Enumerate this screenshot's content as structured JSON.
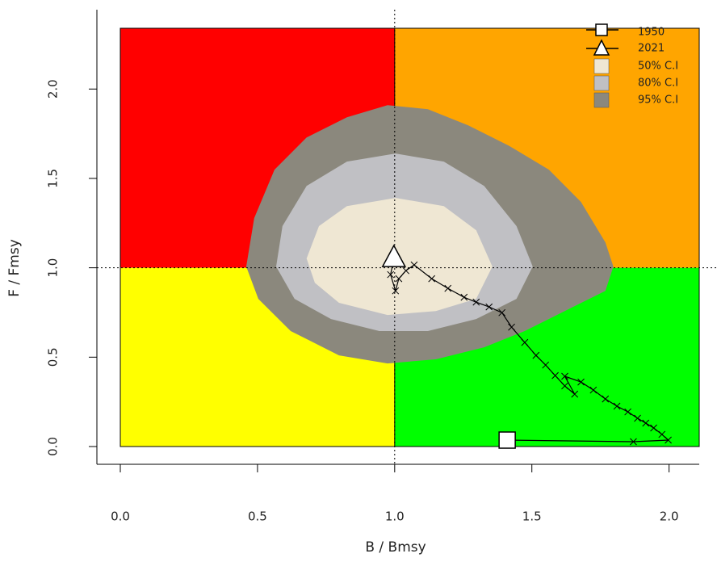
{
  "chart_data": {
    "type": "kobe",
    "x_label": "B / Bmsy",
    "y_label": "F / Fmsy",
    "xlim": [
      0,
      2.11
    ],
    "ylim": [
      0,
      2.34
    ],
    "xticks": [
      {
        "value": 0,
        "label": "0.0"
      },
      {
        "value": 0.5,
        "label": "0.5"
      },
      {
        "value": 1,
        "label": "1.0"
      },
      {
        "value": 1.5,
        "label": "1.5"
      },
      {
        "value": 2,
        "label": "2.0"
      }
    ],
    "yticks": [
      {
        "value": 0,
        "label": "0.0"
      },
      {
        "value": 0.5,
        "label": "0.5"
      },
      {
        "value": 1,
        "label": "1.0"
      },
      {
        "value": 1.5,
        "label": "1.5"
      },
      {
        "value": 2,
        "label": "2.0"
      }
    ],
    "reference_x": 1,
    "reference_y": 1,
    "quadrant_colors": {
      "top_left": "#ff0000",
      "top_right": "#ffa500",
      "bottom_left": "#ffff00",
      "bottom_right": "#00ff00"
    },
    "regions": [
      {
        "name": "95% C.I",
        "color": "#8b887d",
        "x": [
          0.459,
          0.488,
          0.562,
          0.679,
          0.826,
          0.974,
          1.121,
          1.268,
          1.415,
          1.562,
          1.679,
          1.768,
          1.797,
          1.768,
          1.62,
          1.474,
          1.326,
          1.15,
          0.974,
          0.797,
          0.621,
          0.503
        ],
        "y": [
          1.007,
          1.278,
          1.549,
          1.729,
          1.842,
          1.91,
          1.887,
          1.797,
          1.684,
          1.549,
          1.368,
          1.142,
          1.007,
          0.871,
          0.758,
          0.646,
          0.555,
          0.488,
          0.465,
          0.51,
          0.646,
          0.826
        ]
      },
      {
        "name": "80% C.I",
        "color": "#c0c0c4",
        "x": [
          0.568,
          0.591,
          0.679,
          0.826,
          1.003,
          1.179,
          1.326,
          1.444,
          1.503,
          1.444,
          1.297,
          1.121,
          0.944,
          0.768,
          0.635
        ],
        "y": [
          1.007,
          1.233,
          1.458,
          1.594,
          1.639,
          1.594,
          1.458,
          1.233,
          1.007,
          0.826,
          0.713,
          0.646,
          0.646,
          0.713,
          0.826
        ]
      },
      {
        "name": "50% C.I",
        "color": "#efe7d3",
        "x": [
          0.679,
          0.724,
          0.826,
          1.003,
          1.179,
          1.297,
          1.356,
          1.297,
          1.15,
          0.974,
          0.797,
          0.709
        ],
        "y": [
          1.052,
          1.233,
          1.345,
          1.391,
          1.345,
          1.21,
          1.007,
          0.826,
          0.758,
          0.736,
          0.804,
          0.916
        ]
      }
    ],
    "trajectory": {
      "start_label": "1950",
      "end_label": "2021",
      "x": [
        1.41,
        1.87,
        1.997,
        1.974,
        1.944,
        1.915,
        1.885,
        1.85,
        1.81,
        1.768,
        1.724,
        1.679,
        1.62,
        1.656,
        1.62,
        1.585,
        1.55,
        1.515,
        1.474,
        1.426,
        1.391,
        1.344,
        1.297,
        1.253,
        1.194,
        1.135,
        1.071,
        1.041,
        1.015,
        1.003,
        0.985,
        0.997
      ],
      "y": [
        0.036,
        0.027,
        0.036,
        0.068,
        0.104,
        0.131,
        0.158,
        0.194,
        0.226,
        0.266,
        0.316,
        0.361,
        0.393,
        0.293,
        0.339,
        0.397,
        0.456,
        0.51,
        0.582,
        0.668,
        0.749,
        0.781,
        0.808,
        0.835,
        0.885,
        0.939,
        1.016,
        0.984,
        0.939,
        0.871,
        0.962,
        1.052
      ]
    }
  }
}
